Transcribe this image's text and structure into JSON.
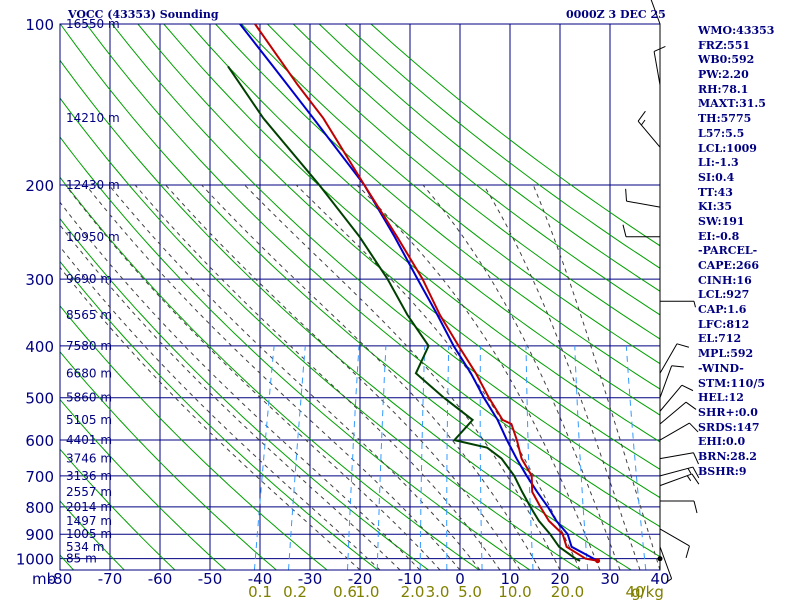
{
  "header": {
    "title": "VOCC (43353) Sounding",
    "datetime": "0000Z  3 DEC 25"
  },
  "params": [
    "WMO:43353",
    "FRZ:551",
    "WB0:592",
    "PW:2.20",
    "RH:78.1",
    "MAXT:31.5",
    "TH:5775",
    "L57:5.5",
    "LCL:1009",
    "LI:-1.3",
    "SI:0.4",
    "TT:43",
    "KI:35",
    "SW:191",
    "EI:-0.8",
    "-PARCEL-",
    "CAPE:266",
    "CINH:16",
    "LCL:927",
    "CAP:1.6",
    "LFC:812",
    "EL:712",
    "MPL:592",
    "-WIND-",
    "STM:110/5",
    "HEL:12",
    "SHR+:0.0",
    "SRDS:147",
    "EHI:0.0",
    "BRN:28.2",
    "BSHR:9"
  ],
  "colors": {
    "axis": "#000080",
    "isotherm": "#0000a0",
    "dry_adiabat": "#00a000",
    "moist_adiabat": "#404040",
    "mixing_ratio": "#3399ff",
    "temperature": "#c00000",
    "dewpoint": "#004000",
    "parcel": "#0000cc",
    "mixing_label": "#808000",
    "wind": "#000000"
  },
  "chart_data": {
    "type": "skew-t",
    "pressure_levels_mb": [
      100,
      200,
      300,
      400,
      500,
      600,
      700,
      800,
      900,
      1000
    ],
    "pressure_label_unit": "mb",
    "temp_range_c": [
      -80,
      40
    ],
    "temp_tick_labels": [
      "-80",
      "-70",
      "-60",
      "-50",
      "-40",
      "-30",
      "-20",
      "-10",
      "0",
      "10",
      "20",
      "30",
      "40"
    ],
    "heights": [
      {
        "p": 100,
        "label": "16550 m"
      },
      {
        "p": 150,
        "label": "14210 m"
      },
      {
        "p": 200,
        "label": "12430 m"
      },
      {
        "p": 250,
        "label": "10950 m"
      },
      {
        "p": 300,
        "label": "9690 m"
      },
      {
        "p": 350,
        "label": "8565 m"
      },
      {
        "p": 400,
        "label": "7580 m"
      },
      {
        "p": 450,
        "label": "6680 m"
      },
      {
        "p": 500,
        "label": "5860 m"
      },
      {
        "p": 550,
        "label": "5105 m"
      },
      {
        "p": 600,
        "label": "4401 m"
      },
      {
        "p": 650,
        "label": "3746 m"
      },
      {
        "p": 700,
        "label": "3136 m"
      },
      {
        "p": 750,
        "label": "2557 m"
      },
      {
        "p": 800,
        "label": "2014 m"
      },
      {
        "p": 850,
        "label": "1497 m"
      },
      {
        "p": 900,
        "label": "1005 m"
      },
      {
        "p": 950,
        "label": "534 m"
      },
      {
        "p": 1000,
        "label": "85 m"
      }
    ],
    "mixing_ratio_labels": [
      {
        "t": -40,
        "label": "0.1"
      },
      {
        "t": -33,
        "label": "0.2"
      },
      {
        "t": -23,
        "label": "0.6"
      },
      {
        "t": -18.5,
        "label": "1.0"
      },
      {
        "t": -9.5,
        "label": "2.0"
      },
      {
        "t": -4.5,
        "label": "3.0"
      },
      {
        "t": 2,
        "label": "5.0"
      },
      {
        "t": 11,
        "label": "10.0"
      },
      {
        "t": 21.5,
        "label": "20.0"
      },
      {
        "t": 35,
        "label": "40"
      },
      {
        "t": 37.5,
        "label": "g/kg"
      }
    ],
    "temperature_profile": [
      {
        "p": 1009,
        "t": 27
      },
      {
        "p": 1000,
        "t": 24.5
      },
      {
        "p": 950,
        "t": 20
      },
      {
        "p": 900,
        "t": 18.5
      },
      {
        "p": 850,
        "t": 15
      },
      {
        "p": 800,
        "t": 12.5
      },
      {
        "p": 750,
        "t": 10
      },
      {
        "p": 700,
        "t": 9
      },
      {
        "p": 650,
        "t": 6
      },
      {
        "p": 600,
        "t": 4
      },
      {
        "p": 560,
        "t": 2
      },
      {
        "p": 550,
        "t": 0
      },
      {
        "p": 500,
        "t": -4
      },
      {
        "p": 450,
        "t": -8
      },
      {
        "p": 400,
        "t": -13
      },
      {
        "p": 350,
        "t": -18.5
      },
      {
        "p": 300,
        "t": -24
      },
      {
        "p": 250,
        "t": -31.5
      },
      {
        "p": 200,
        "t": -41
      },
      {
        "p": 150,
        "t": -53
      },
      {
        "p": 130,
        "t": -60
      },
      {
        "p": 100,
        "t": -72
      }
    ],
    "dewpoint_profile": [
      {
        "p": 1009,
        "t": 23.5
      },
      {
        "p": 1000,
        "t": 22.5
      },
      {
        "p": 950,
        "t": 18.5
      },
      {
        "p": 900,
        "t": 16
      },
      {
        "p": 850,
        "t": 13
      },
      {
        "p": 800,
        "t": 10.5
      },
      {
        "p": 750,
        "t": 8
      },
      {
        "p": 700,
        "t": 5.5
      },
      {
        "p": 650,
        "t": 2
      },
      {
        "p": 620,
        "t": -1.5
      },
      {
        "p": 600,
        "t": -8.5
      },
      {
        "p": 570,
        "t": -7
      },
      {
        "p": 550,
        "t": -6
      },
      {
        "p": 500,
        "t": -13
      },
      {
        "p": 450,
        "t": -20
      },
      {
        "p": 400,
        "t": -19
      },
      {
        "p": 350,
        "t": -25
      },
      {
        "p": 300,
        "t": -31
      },
      {
        "p": 250,
        "t": -39
      },
      {
        "p": 200,
        "t": -50
      },
      {
        "p": 150,
        "t": -65
      },
      {
        "p": 120,
        "t": -75
      }
    ],
    "parcel_profile": [
      {
        "p": 1009,
        "t": 27
      },
      {
        "p": 950,
        "t": 21
      },
      {
        "p": 900,
        "t": 19.5
      },
      {
        "p": 850,
        "t": 16.5
      },
      {
        "p": 800,
        "t": 14
      },
      {
        "p": 750,
        "t": 11
      },
      {
        "p": 700,
        "t": 8
      },
      {
        "p": 650,
        "t": 5
      },
      {
        "p": 600,
        "t": 2
      },
      {
        "p": 550,
        "t": -1
      },
      {
        "p": 500,
        "t": -5
      },
      {
        "p": 450,
        "t": -9
      },
      {
        "p": 400,
        "t": -14
      },
      {
        "p": 350,
        "t": -19
      },
      {
        "p": 300,
        "t": -25
      },
      {
        "p": 250,
        "t": -32
      },
      {
        "p": 200,
        "t": -41
      },
      {
        "p": 150,
        "t": -55
      },
      {
        "p": 120,
        "t": -66
      },
      {
        "p": 100,
        "t": -75
      }
    ],
    "wind_barbs": [
      {
        "p": 100,
        "dir": 340,
        "spd": 15
      },
      {
        "p": 130,
        "dir": 350,
        "spd": 10
      },
      {
        "p": 170,
        "dir": 320,
        "spd": 15
      },
      {
        "p": 220,
        "dir": 280,
        "spd": 10
      },
      {
        "p": 250,
        "dir": 270,
        "spd": 10
      },
      {
        "p": 330,
        "dir": 90,
        "spd": 5
      },
      {
        "p": 450,
        "dir": 30,
        "spd": 10
      },
      {
        "p": 500,
        "dir": 20,
        "spd": 10
      },
      {
        "p": 530,
        "dir": 40,
        "spd": 10
      },
      {
        "p": 560,
        "dir": 50,
        "spd": 10
      },
      {
        "p": 600,
        "dir": 60,
        "spd": 10
      },
      {
        "p": 650,
        "dir": 80,
        "spd": 10
      },
      {
        "p": 700,
        "dir": 75,
        "spd": 15
      },
      {
        "p": 730,
        "dir": 70,
        "spd": 15
      },
      {
        "p": 780,
        "dir": 90,
        "spd": 10
      },
      {
        "p": 880,
        "dir": 120,
        "spd": 10
      },
      {
        "p": 950,
        "dir": 160,
        "spd": 5
      },
      {
        "p": 1000,
        "dir": 0,
        "spd": 0
      }
    ]
  }
}
